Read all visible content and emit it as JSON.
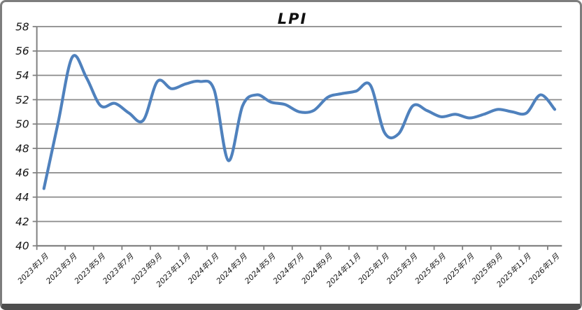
{
  "chart_title": "LPI",
  "chart_data": {
    "type": "line",
    "title": "LPI",
    "xlabel": "",
    "ylabel": "",
    "ylim": [
      40,
      58
    ],
    "y_ticks": [
      58,
      56,
      54,
      52,
      50,
      48,
      46,
      44,
      42,
      40
    ],
    "x_label_every": 2,
    "grid": "horizontal",
    "legend": "none",
    "smoothed_line": true,
    "categories": [
      "2023年1月",
      "2023年2月",
      "2023年3月",
      "2023年4月",
      "2023年5月",
      "2023年6月",
      "2023年7月",
      "2023年8月",
      "2023年9月",
      "2023年10月",
      "2023年11月",
      "2023年12月",
      "2024年1月",
      "2024年2月",
      "2024年3月",
      "2024年4月",
      "2024年5月",
      "2024年6月",
      "2024年7月",
      "2024年8月",
      "2024年9月",
      "2024年10月",
      "2024年11月",
      "2024年12月",
      "2025年1月",
      "2025年2月",
      "2025年3月",
      "2025年4月",
      "2025年5月",
      "2025年6月",
      "2025年7月",
      "2025年8月",
      "2025年9月",
      "2025年10月",
      "2025年11月",
      "2025年12月",
      "2026年1月"
    ],
    "visible_x_tick_labels": [
      "2023年1月",
      "2023年3月",
      "2023年5月",
      "2023年7月",
      "2023年9月",
      "2023年11月",
      "2024年1月",
      "2024年3月",
      "2024年5月",
      "2024年7月",
      "2024年9月",
      "2024年11月",
      "2025年1月",
      "2025年3月",
      "2025年5月",
      "2025年7月",
      "2025年9月",
      "2025年11月",
      "2026年1月"
    ],
    "series": [
      {
        "name": "LPI",
        "values": [
          44.7,
          50.1,
          55.5,
          53.8,
          51.5,
          51.7,
          50.9,
          50.3,
          53.5,
          52.9,
          53.3,
          53.5,
          52.8,
          47.0,
          51.5,
          52.4,
          51.8,
          51.6,
          51.0,
          51.1,
          52.2,
          52.5,
          52.7,
          53.2,
          49.3,
          49.2,
          51.5,
          51.1,
          50.6,
          50.8,
          50.5,
          50.8,
          51.2,
          51.0,
          50.9,
          52.4,
          51.2
        ]
      }
    ],
    "colors": {
      "line": "#4F81BD",
      "grid": "#8a8a8a",
      "axis": "#808080",
      "text": "#141414",
      "frame_border": "#7d7d7d",
      "frame_bottom": "#4e4e4e",
      "background": "#ffffff"
    }
  }
}
